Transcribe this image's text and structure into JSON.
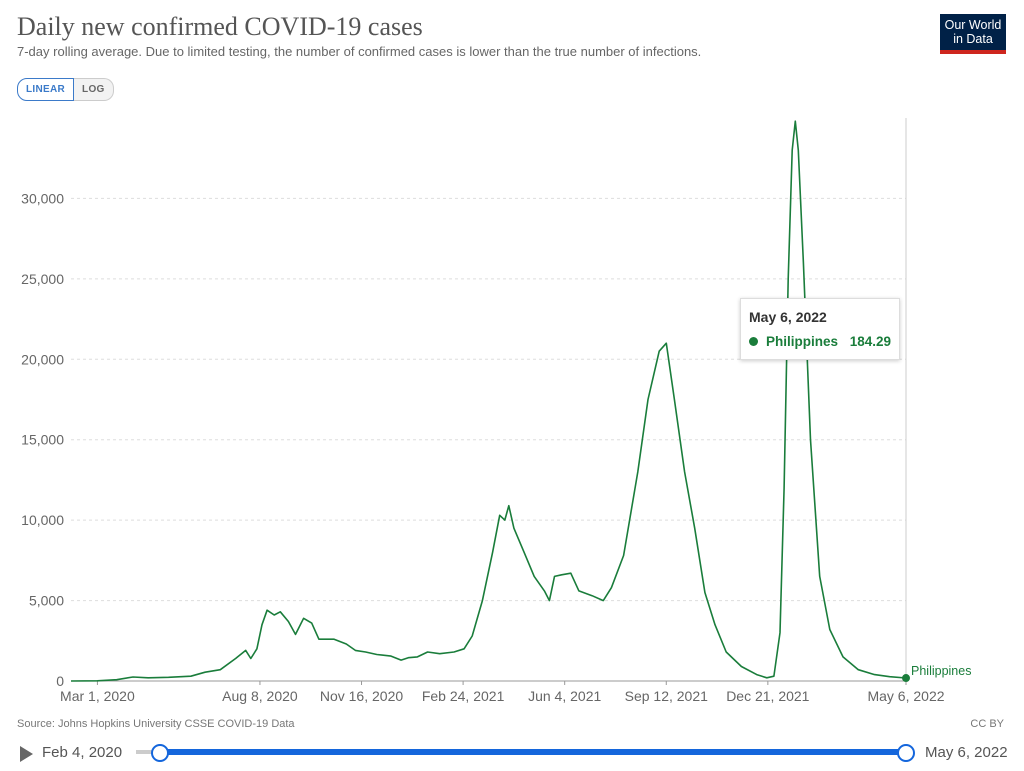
{
  "header": {
    "title": "Daily new confirmed COVID-19 cases",
    "subtitle": "7-day rolling average. Due to limited testing, the number of confirmed cases is lower than the true number of infections.",
    "logo_line1": "Our World",
    "logo_line2": "in Data"
  },
  "scale_toggle": {
    "linear_label": "LINEAR",
    "log_label": "LOG",
    "selected": "LINEAR"
  },
  "tooltip": {
    "date": "May 6, 2022",
    "series": "Philippines",
    "value": "184.29"
  },
  "footer": {
    "source": "Source: Johns Hopkins University CSSE COVID-19 Data",
    "license": "CC BY"
  },
  "timeline": {
    "start_label": "Feb 4, 2020",
    "end_label": "May 6, 2022",
    "range_start": "Feb 4, 2020",
    "range_end": "May 6, 2022"
  },
  "colors": {
    "series": "#1a7d3b",
    "accent": "#1466dc",
    "logo_bg": "#002147",
    "logo_bar": "#ce261e"
  },
  "chart_data": {
    "type": "line",
    "title": "Daily new confirmed COVID-19 cases",
    "ylim": [
      0,
      35000
    ],
    "yticks": [
      0,
      5000,
      10000,
      15000,
      20000,
      25000,
      30000
    ],
    "ytick_labels": [
      "0",
      "5,000",
      "10,000",
      "15,000",
      "20,000",
      "25,000",
      "30,000"
    ],
    "xlim": [
      "2020-02-04",
      "2022-05-06"
    ],
    "xticks": [
      "2020-03-01",
      "2020-08-08",
      "2020-11-16",
      "2021-02-24",
      "2021-06-04",
      "2021-09-12",
      "2021-12-21",
      "2022-05-06"
    ],
    "xtick_labels": [
      "Mar 1, 2020",
      "Aug 8, 2020",
      "Nov 16, 2020",
      "Feb 24, 2021",
      "Jun 4, 2021",
      "Sep 12, 2021",
      "Dec 21, 2021",
      "May 6, 2022"
    ],
    "grid": true,
    "series": [
      {
        "name": "Philippines",
        "color": "#1a7d3b",
        "end_label": "Philippines",
        "points": [
          [
            "2020-02-04",
            0
          ],
          [
            "2020-03-01",
            10
          ],
          [
            "2020-03-20",
            80
          ],
          [
            "2020-04-05",
            250
          ],
          [
            "2020-04-20",
            200
          ],
          [
            "2020-05-10",
            230
          ],
          [
            "2020-06-01",
            300
          ],
          [
            "2020-06-15",
            550
          ],
          [
            "2020-06-30",
            700
          ],
          [
            "2020-07-15",
            1400
          ],
          [
            "2020-07-25",
            1900
          ],
          [
            "2020-07-30",
            1400
          ],
          [
            "2020-08-05",
            2000
          ],
          [
            "2020-08-10",
            3500
          ],
          [
            "2020-08-15",
            4400
          ],
          [
            "2020-08-22",
            4100
          ],
          [
            "2020-08-28",
            4300
          ],
          [
            "2020-09-05",
            3700
          ],
          [
            "2020-09-12",
            2900
          ],
          [
            "2020-09-20",
            3900
          ],
          [
            "2020-09-28",
            3600
          ],
          [
            "2020-10-05",
            2600
          ],
          [
            "2020-10-20",
            2600
          ],
          [
            "2020-11-01",
            2300
          ],
          [
            "2020-11-10",
            1900
          ],
          [
            "2020-11-20",
            1800
          ],
          [
            "2020-12-01",
            1650
          ],
          [
            "2020-12-15",
            1550
          ],
          [
            "2020-12-25",
            1300
          ],
          [
            "2021-01-01",
            1450
          ],
          [
            "2021-01-10",
            1500
          ],
          [
            "2021-01-20",
            1800
          ],
          [
            "2021-02-01",
            1700
          ],
          [
            "2021-02-15",
            1800
          ],
          [
            "2021-02-25",
            2000
          ],
          [
            "2021-03-05",
            2800
          ],
          [
            "2021-03-15",
            5000
          ],
          [
            "2021-03-25",
            8000
          ],
          [
            "2021-04-01",
            10300
          ],
          [
            "2021-04-06",
            10000
          ],
          [
            "2021-04-10",
            10900
          ],
          [
            "2021-04-15",
            9500
          ],
          [
            "2021-04-25",
            8000
          ],
          [
            "2021-05-05",
            6500
          ],
          [
            "2021-05-15",
            5600
          ],
          [
            "2021-05-20",
            5000
          ],
          [
            "2021-05-25",
            6500
          ],
          [
            "2021-06-01",
            6600
          ],
          [
            "2021-06-10",
            6700
          ],
          [
            "2021-06-18",
            5600
          ],
          [
            "2021-07-01",
            5300
          ],
          [
            "2021-07-12",
            5000
          ],
          [
            "2021-07-20",
            5800
          ],
          [
            "2021-08-01",
            7800
          ],
          [
            "2021-08-15",
            13000
          ],
          [
            "2021-08-25",
            17500
          ],
          [
            "2021-09-05",
            20500
          ],
          [
            "2021-09-12",
            21000
          ],
          [
            "2021-09-20",
            17500
          ],
          [
            "2021-09-30",
            13000
          ],
          [
            "2021-10-10",
            9500
          ],
          [
            "2021-10-20",
            5500
          ],
          [
            "2021-10-30",
            3500
          ],
          [
            "2021-11-10",
            1800
          ],
          [
            "2021-11-25",
            900
          ],
          [
            "2021-12-10",
            400
          ],
          [
            "2021-12-20",
            200
          ],
          [
            "2021-12-27",
            300
          ],
          [
            "2022-01-02",
            3000
          ],
          [
            "2022-01-06",
            12000
          ],
          [
            "2022-01-10",
            25000
          ],
          [
            "2022-01-14",
            33000
          ],
          [
            "2022-01-17",
            34800
          ],
          [
            "2022-01-20",
            33000
          ],
          [
            "2022-01-25",
            26000
          ],
          [
            "2022-02-01",
            15000
          ],
          [
            "2022-02-10",
            6500
          ],
          [
            "2022-02-20",
            3200
          ],
          [
            "2022-03-05",
            1500
          ],
          [
            "2022-03-20",
            700
          ],
          [
            "2022-04-05",
            400
          ],
          [
            "2022-04-20",
            270
          ],
          [
            "2022-05-06",
            184.29
          ]
        ]
      }
    ]
  }
}
